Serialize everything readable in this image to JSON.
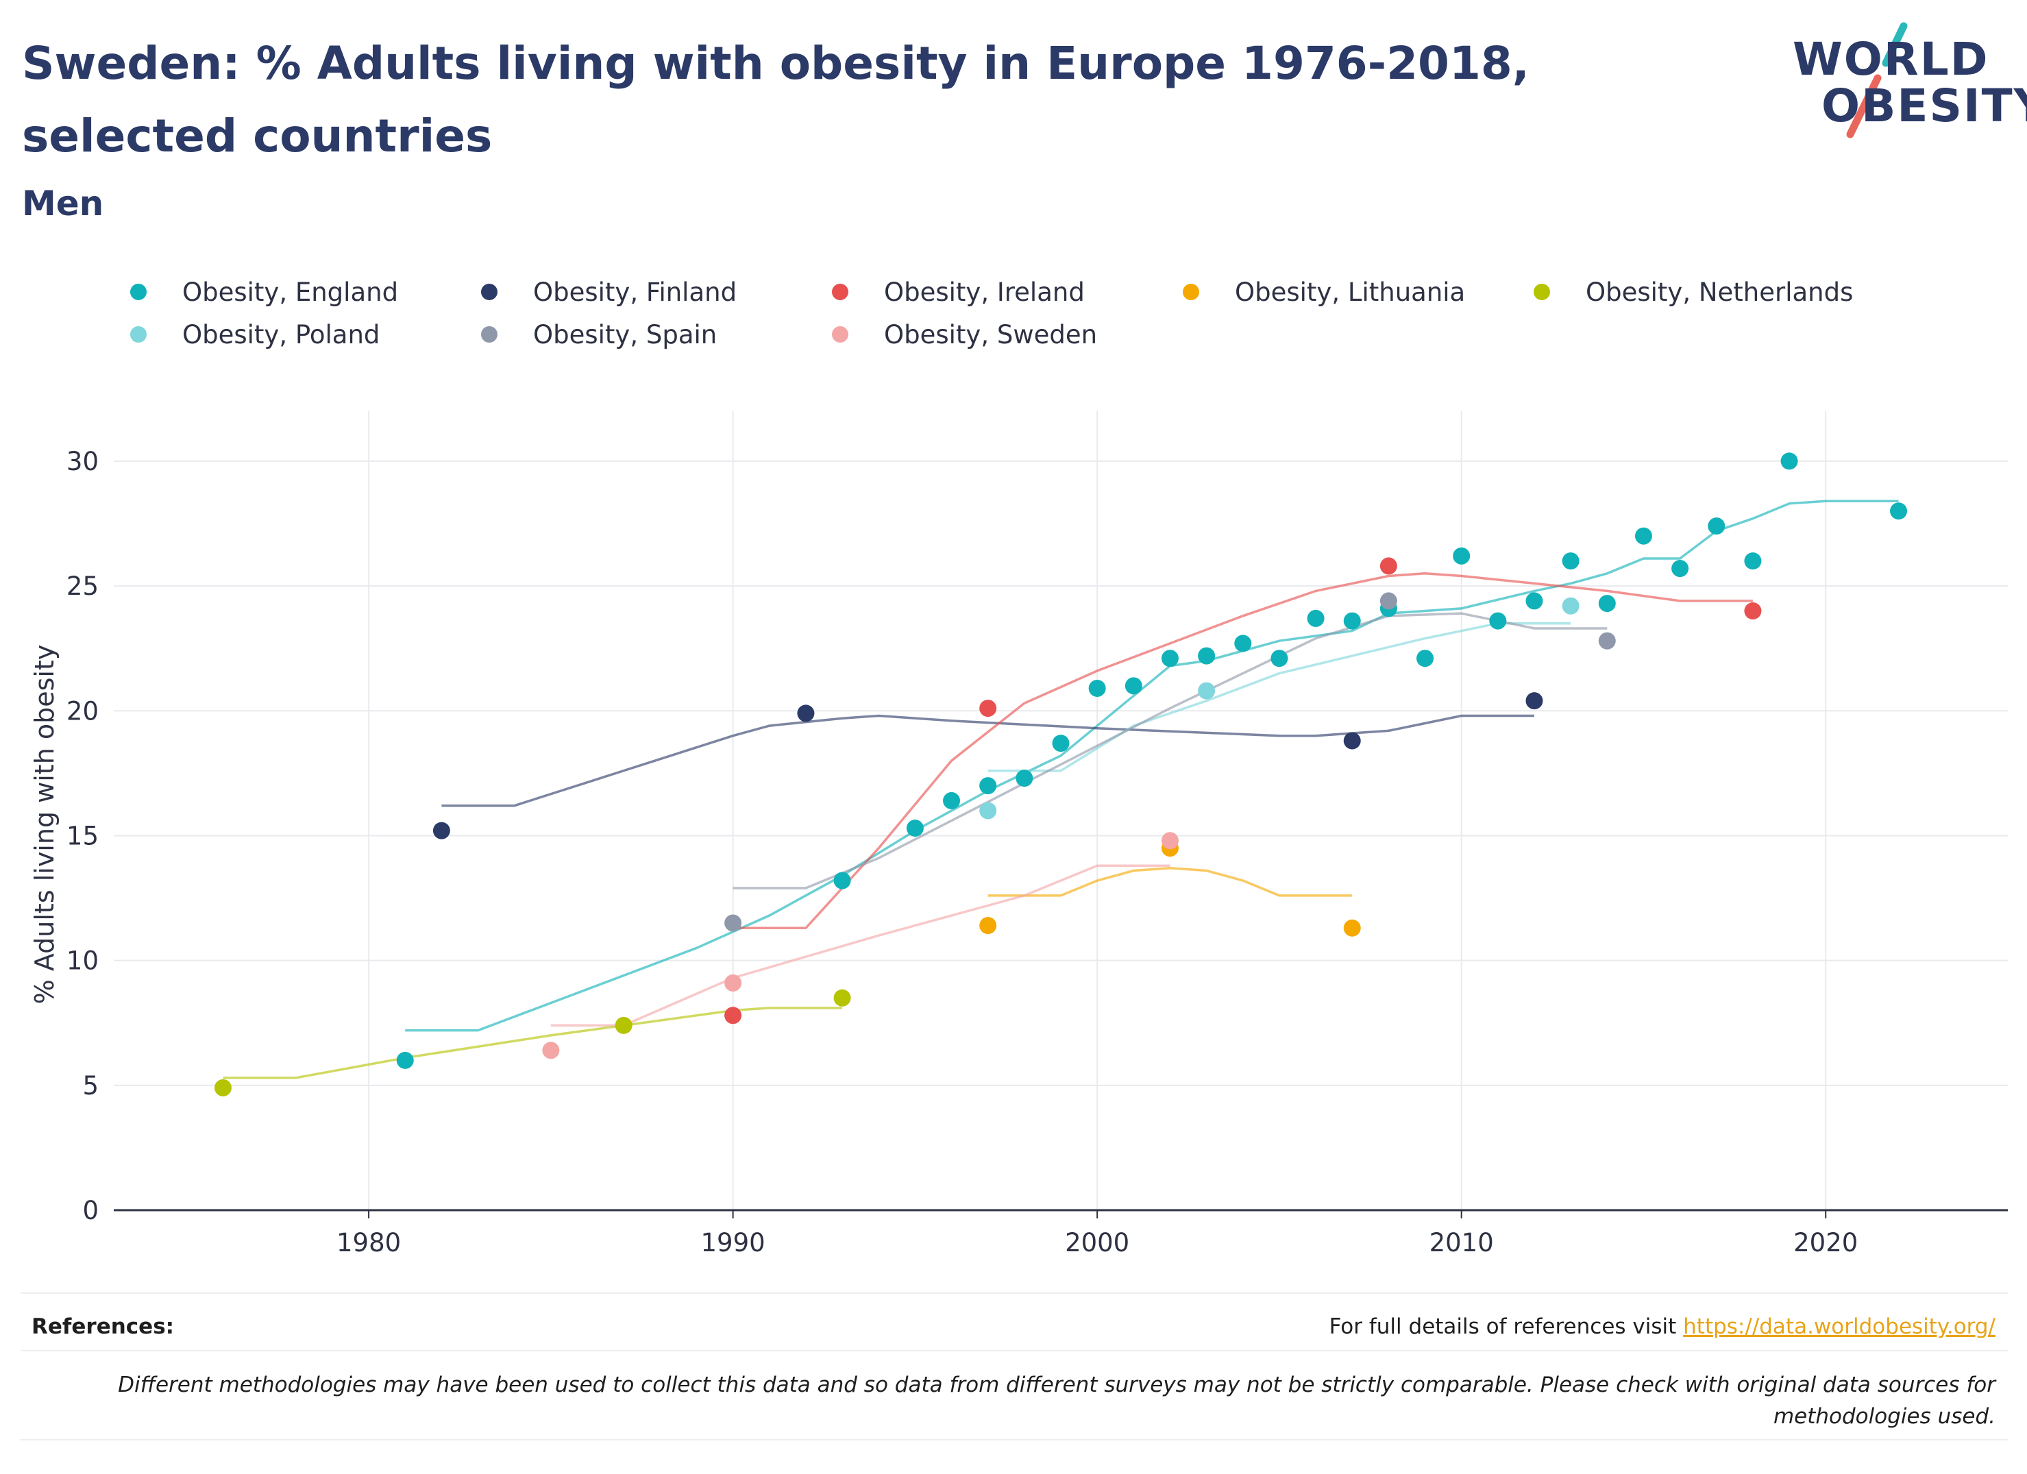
{
  "header": {
    "title": "Sweden: % Adults living with obesity in Europe 1976-2018, selected countries",
    "subtitle": "Men",
    "logo_line1": "WORLD",
    "logo_line2": "OBESITY"
  },
  "footer": {
    "references_label": "References:",
    "references_text": "For full details of references visit",
    "references_link": "https://data.worldobesity.org/",
    "disclaimer": "Different methodologies may have been used to collect this data and so data from different surveys may not be strictly comparable. Please check with original data sources for methodologies used."
  },
  "chart_data": {
    "type": "scatter",
    "title": "Sweden: % Adults living with obesity in Europe 1976-2018, selected countries",
    "subtitle": "Men",
    "xlabel": "",
    "ylabel": "% Adults living with obesity",
    "xlim": [
      1973,
      2025
    ],
    "ylim": [
      0,
      32
    ],
    "xticks": [
      1980,
      1990,
      2000,
      2010,
      2020
    ],
    "yticks": [
      0,
      5,
      10,
      15,
      20,
      25,
      30
    ],
    "grid": true,
    "legend_position": "top",
    "series": [
      {
        "name": "Obesity, England",
        "color": "#0fb2b8",
        "points": [
          [
            1981,
            6.0
          ],
          [
            1993,
            13.2
          ],
          [
            1995,
            15.3
          ],
          [
            1996,
            16.4
          ],
          [
            1997,
            17.0
          ],
          [
            1998,
            17.3
          ],
          [
            1999,
            18.7
          ],
          [
            2000,
            20.9
          ],
          [
            2001,
            21.0
          ],
          [
            2002,
            22.1
          ],
          [
            2003,
            22.2
          ],
          [
            2004,
            22.7
          ],
          [
            2005,
            22.1
          ],
          [
            2006,
            23.7
          ],
          [
            2007,
            23.6
          ],
          [
            2008,
            24.1
          ],
          [
            2009,
            22.1
          ],
          [
            2010,
            26.2
          ],
          [
            2011,
            23.6
          ],
          [
            2012,
            24.4
          ],
          [
            2013,
            26.0
          ],
          [
            2014,
            24.3
          ],
          [
            2015,
            27.0
          ],
          [
            2016,
            25.7
          ],
          [
            2017,
            27.4
          ],
          [
            2018,
            26.0
          ],
          [
            2019,
            30.0
          ],
          [
            2022,
            28.0
          ]
        ],
        "trend": [
          [
            1981,
            7.2
          ],
          [
            1983,
            7.2
          ],
          [
            1985,
            8.3
          ],
          [
            1987,
            9.4
          ],
          [
            1989,
            10.5
          ],
          [
            1991,
            11.8
          ],
          [
            1993,
            13.4
          ],
          [
            1995,
            15.2
          ],
          [
            1997,
            16.8
          ],
          [
            1999,
            18.2
          ],
          [
            2001,
            20.6
          ],
          [
            2002,
            21.8
          ],
          [
            2003,
            22.0
          ],
          [
            2005,
            22.8
          ],
          [
            2007,
            23.2
          ],
          [
            2008,
            23.9
          ],
          [
            2010,
            24.1
          ],
          [
            2012,
            24.8
          ],
          [
            2013,
            25.1
          ],
          [
            2014,
            25.5
          ],
          [
            2015,
            26.1
          ],
          [
            2016,
            26.1
          ],
          [
            2017,
            27.2
          ],
          [
            2018,
            27.7
          ],
          [
            2019,
            28.3
          ],
          [
            2020,
            28.4
          ],
          [
            2022,
            28.4
          ]
        ]
      },
      {
        "name": "Obesity, Finland",
        "color": "#2b3a67",
        "points": [
          [
            1982,
            15.2
          ],
          [
            1992,
            19.9
          ],
          [
            2007,
            18.8
          ],
          [
            2012,
            20.4
          ]
        ],
        "trend": [
          [
            1982,
            16.2
          ],
          [
            1984,
            16.2
          ],
          [
            1990,
            19.0
          ],
          [
            1991,
            19.4
          ],
          [
            1993,
            19.7
          ],
          [
            1994,
            19.8
          ],
          [
            1996,
            19.6
          ],
          [
            2000,
            19.3
          ],
          [
            2005,
            19.0
          ],
          [
            2006,
            19.0
          ],
          [
            2007,
            19.1
          ],
          [
            2008,
            19.2
          ],
          [
            2009,
            19.5
          ],
          [
            2010,
            19.8
          ],
          [
            2012,
            19.8
          ]
        ]
      },
      {
        "name": "Obesity, Ireland",
        "color": "#e84f4f",
        "points": [
          [
            1990,
            7.8
          ],
          [
            1997,
            20.1
          ],
          [
            2008,
            25.8
          ],
          [
            2018,
            24.0
          ]
        ],
        "trend": [
          [
            1990,
            11.3
          ],
          [
            1992,
            11.3
          ],
          [
            1994,
            14.5
          ],
          [
            1996,
            18.0
          ],
          [
            1998,
            20.3
          ],
          [
            2000,
            21.6
          ],
          [
            2002,
            22.7
          ],
          [
            2004,
            23.8
          ],
          [
            2006,
            24.8
          ],
          [
            2008,
            25.4
          ],
          [
            2009,
            25.5
          ],
          [
            2010,
            25.4
          ],
          [
            2012,
            25.1
          ],
          [
            2014,
            24.8
          ],
          [
            2016,
            24.4
          ],
          [
            2018,
            24.4
          ]
        ]
      },
      {
        "name": "Obesity, Lithuania",
        "color": "#f5a800",
        "points": [
          [
            1997,
            11.4
          ],
          [
            2002,
            14.5
          ],
          [
            2007,
            11.3
          ]
        ],
        "trend": [
          [
            1997,
            12.6
          ],
          [
            1999,
            12.6
          ],
          [
            2000,
            13.2
          ],
          [
            2001,
            13.6
          ],
          [
            2002,
            13.7
          ],
          [
            2003,
            13.6
          ],
          [
            2004,
            13.2
          ],
          [
            2005,
            12.6
          ],
          [
            2007,
            12.6
          ]
        ]
      },
      {
        "name": "Obesity, Netherlands",
        "color": "#b5c400",
        "points": [
          [
            1976,
            4.9
          ],
          [
            1987,
            7.4
          ],
          [
            1993,
            8.5
          ]
        ],
        "trend": [
          [
            1976,
            5.3
          ],
          [
            1978,
            5.3
          ],
          [
            1981,
            6.1
          ],
          [
            1985,
            7.0
          ],
          [
            1988,
            7.6
          ],
          [
            1990,
            8.0
          ],
          [
            1991,
            8.1
          ],
          [
            1993,
            8.1
          ]
        ]
      },
      {
        "name": "Obesity, Poland",
        "color": "#7fd6dc",
        "points": [
          [
            1997,
            16.0
          ],
          [
            2003,
            20.8
          ],
          [
            2013,
            24.2
          ]
        ],
        "trend": [
          [
            1997,
            17.6
          ],
          [
            1999,
            17.6
          ],
          [
            2001,
            19.4
          ],
          [
            2003,
            20.4
          ],
          [
            2005,
            21.5
          ],
          [
            2007,
            22.2
          ],
          [
            2009,
            22.9
          ],
          [
            2011,
            23.5
          ],
          [
            2013,
            23.5
          ]
        ]
      },
      {
        "name": "Obesity, Spain",
        "color": "#8f97aa",
        "points": [
          [
            1990,
            11.5
          ],
          [
            2008,
            24.4
          ],
          [
            2014,
            22.8
          ]
        ],
        "trend": [
          [
            1990,
            12.9
          ],
          [
            1992,
            12.9
          ],
          [
            1994,
            14.1
          ],
          [
            1996,
            15.6
          ],
          [
            1998,
            17.1
          ],
          [
            2000,
            18.6
          ],
          [
            2002,
            20.1
          ],
          [
            2004,
            21.5
          ],
          [
            2006,
            22.9
          ],
          [
            2008,
            23.8
          ],
          [
            2010,
            23.9
          ],
          [
            2012,
            23.3
          ],
          [
            2014,
            23.3
          ]
        ]
      },
      {
        "name": "Obesity, Sweden",
        "color": "#f4a6a6",
        "points": [
          [
            1985,
            6.4
          ],
          [
            1990,
            9.1
          ],
          [
            2002,
            14.8
          ]
        ],
        "trend": [
          [
            1985,
            7.4
          ],
          [
            1987,
            7.4
          ],
          [
            1990,
            9.3
          ],
          [
            1994,
            11.0
          ],
          [
            1998,
            12.6
          ],
          [
            2000,
            13.8
          ],
          [
            2002,
            13.8
          ]
        ]
      }
    ]
  }
}
